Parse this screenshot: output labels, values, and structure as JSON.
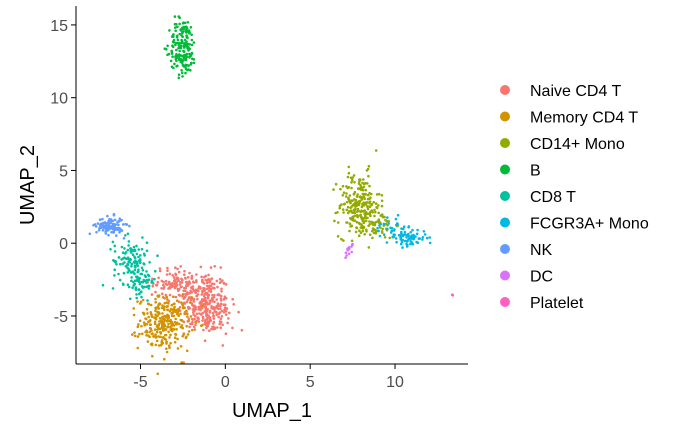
{
  "chart_data": {
    "type": "scatter",
    "title": "",
    "xlabel": "UMAP_1",
    "ylabel": "UMAP_2",
    "xlim": [
      -8.8,
      14.3
    ],
    "ylim": [
      -8.3,
      16.3
    ],
    "x_ticks": [
      -5,
      0,
      5,
      10
    ],
    "y_ticks": [
      -5,
      0,
      5,
      10,
      15
    ],
    "grid": false,
    "legend_position": "right",
    "series": [
      {
        "name": "Naive CD4 T",
        "color": "#F8766D",
        "clusters": [
          {
            "cx": -1.3,
            "cy": -4.0,
            "sx": 0.75,
            "sy": 1.0,
            "n": 260
          },
          {
            "cx": -2.8,
            "cy": -2.7,
            "sx": 0.7,
            "sy": 0.55,
            "n": 110
          },
          {
            "cx": -0.7,
            "cy": -5.3,
            "sx": 0.6,
            "sy": 0.6,
            "n": 60
          }
        ]
      },
      {
        "name": "Memory CD4 T",
        "color": "#D39200",
        "clusters": [
          {
            "cx": -3.6,
            "cy": -5.5,
            "sx": 0.75,
            "sy": 0.9,
            "n": 280
          }
        ]
      },
      {
        "name": "CD14+ Mono",
        "color": "#93AA00",
        "clusters": [
          {
            "cx": 7.9,
            "cy": 2.6,
            "sx": 0.6,
            "sy": 1.1,
            "n": 230
          },
          {
            "cx": 8.9,
            "cy": 1.3,
            "sx": 0.55,
            "sy": 0.5,
            "n": 60
          }
        ]
      },
      {
        "name": "B",
        "color": "#00BA38",
        "clusters": [
          {
            "cx": -2.5,
            "cy": 13.5,
            "sx": 0.4,
            "sy": 1.0,
            "n": 170
          }
        ]
      },
      {
        "name": "CD8 T",
        "color": "#00C19F",
        "clusters": [
          {
            "cx": -5.6,
            "cy": -1.2,
            "sx": 0.5,
            "sy": 0.8,
            "n": 110
          },
          {
            "cx": -4.9,
            "cy": -2.6,
            "sx": 0.4,
            "sy": 0.5,
            "n": 60
          }
        ]
      },
      {
        "name": "FCGR3A+ Mono",
        "color": "#00B9E3",
        "clusters": [
          {
            "cx": 10.7,
            "cy": 0.4,
            "sx": 0.6,
            "sy": 0.3,
            "n": 80
          },
          {
            "cx": 9.8,
            "cy": 1.2,
            "sx": 0.5,
            "sy": 0.4,
            "n": 20
          }
        ]
      },
      {
        "name": "NK",
        "color": "#619CFF",
        "clusters": [
          {
            "cx": -6.8,
            "cy": 1.2,
            "sx": 0.4,
            "sy": 0.3,
            "n": 110
          }
        ]
      },
      {
        "name": "DC",
        "color": "#DB72FB",
        "clusters": [
          {
            "cx": 7.3,
            "cy": -0.6,
            "sx": 0.2,
            "sy": 0.3,
            "n": 12
          }
        ]
      },
      {
        "name": "Platelet",
        "color": "#FF61C3",
        "clusters": [
          {
            "cx": 13.4,
            "cy": -3.6,
            "sx": 0.04,
            "sy": 0.04,
            "n": 2
          }
        ]
      }
    ]
  }
}
